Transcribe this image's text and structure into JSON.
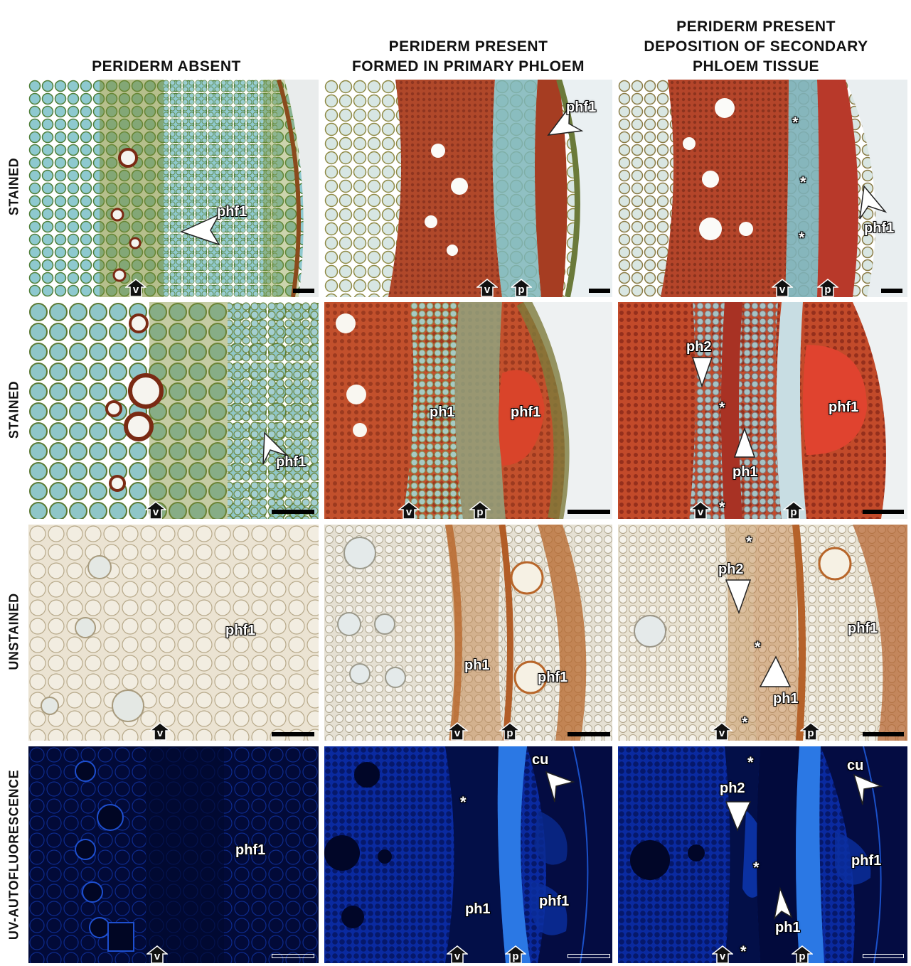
{
  "columns": [
    {
      "lines": [
        "PERIDERM ABSENT"
      ]
    },
    {
      "lines": [
        "PERIDERM PRESENT",
        "FORMED IN PRIMARY PHLOEM"
      ]
    },
    {
      "lines": [
        "PERIDERM PRESENT",
        "DEPOSITION OF SECONDARY",
        "PHLOEM TISSUE"
      ]
    }
  ],
  "rows": [
    "STAINED",
    "STAINED",
    "UNSTAINED",
    "UV-AUTOFLUORESCENCE"
  ],
  "labels": {
    "phf1": "phf1",
    "ph1": "ph1",
    "ph2": "ph2",
    "cu": "cu",
    "v": "v",
    "p": "p",
    "asterisk": "*"
  },
  "colors": {
    "stained_blue": "#6fb0b6",
    "stained_green": "#8c9a3a",
    "stained_red": "#b8432a",
    "unstained_cream": "#e8ddc8",
    "unstained_brown": "#b8662a",
    "uv_dark": "#030c40",
    "uv_bright": "#2f7de8"
  }
}
